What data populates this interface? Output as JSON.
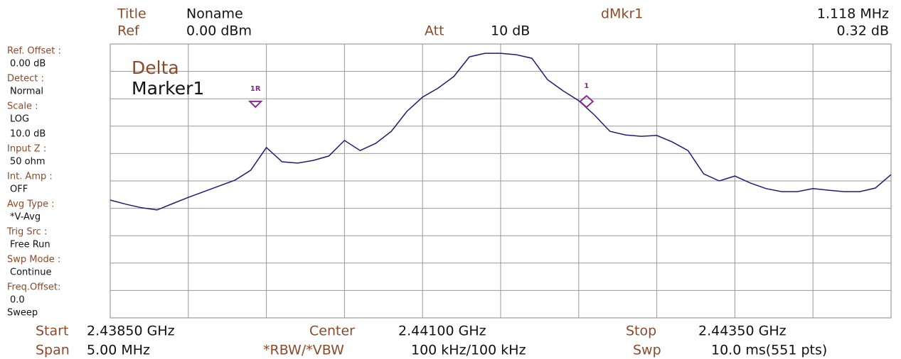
{
  "header": {
    "title_label": "Title",
    "title": "Noname",
    "ref_label": "Ref",
    "ref": "0.00 dBm",
    "att_label": "Att",
    "att": "10 dB",
    "dmkr_label": "dMkr1",
    "dmkr_freq": "1.118 MHz",
    "dmkr_level": "0.32 dB"
  },
  "side_panel": [
    {
      "label": "Ref. Offset :",
      "value": "0.00 dB"
    },
    {
      "label": "Detect :",
      "value": "Normal"
    },
    {
      "label": "Scale :",
      "value": "LOG"
    },
    {
      "label": "",
      "value": "10.0 dB"
    },
    {
      "label": "Input Z :",
      "value": "50 ohm"
    },
    {
      "label": "Int. Amp :",
      "value": "OFF"
    },
    {
      "label": "Avg Type :",
      "value": "*V-Avg"
    },
    {
      "label": "Trig Src :",
      "value": "Free Run"
    },
    {
      "label": "Swp Mode :",
      "value": "Continue"
    },
    {
      "label": "Freq.Offset:",
      "value": "0.0"
    }
  ],
  "sweep": "Sweep",
  "overlay": {
    "mode": "Delta",
    "marker": "Marker1"
  },
  "footer": {
    "start_label": "Start",
    "start": "2.43850 GHz",
    "center_label": "Center",
    "center": "2.44100 GHz",
    "stop_label": "Stop",
    "stop": "2.44350 GHz",
    "span_label": "Span",
    "span": "5.00 MHz",
    "bw_label": "*RBW/*VBW",
    "bw": "100 kHz/100 kHz",
    "swp_label": "Swp",
    "swp": "10.0 ms(551 pts)"
  },
  "chart_data": {
    "type": "line",
    "color": "#1c1c78",
    "xlim": [
      2.4385,
      2.4435
    ],
    "ylim": [
      -100,
      0
    ],
    "grid": true,
    "x": [
      2.4385,
      2.4386,
      2.4387,
      2.4388,
      2.4389,
      2.439,
      2.4391,
      2.4392,
      2.4393,
      2.4394,
      2.4395,
      2.4396,
      2.4397,
      2.4398,
      2.4399,
      2.44,
      2.4401,
      2.4402,
      2.4403,
      2.4404,
      2.4405,
      2.4406,
      2.4407,
      2.4408,
      2.4409,
      2.441,
      2.4411,
      2.4412,
      2.4413,
      2.4414,
      2.4415,
      2.4416,
      2.4417,
      2.4418,
      2.4419,
      2.442,
      2.4421,
      2.4422,
      2.4423,
      2.4424,
      2.4425,
      2.4426,
      2.4427,
      2.4428,
      2.4429,
      2.443,
      2.4431,
      2.4432,
      2.4433,
      2.4434,
      2.4435
    ],
    "values": [
      -57.0,
      -58.5,
      -59.8,
      -60.6,
      -58.3,
      -56.0,
      -53.9,
      -51.8,
      -49.7,
      -46.1,
      -37.8,
      -43.0,
      -43.5,
      -42.5,
      -40.9,
      -35.2,
      -38.9,
      -36.3,
      -31.9,
      -24.6,
      -19.4,
      -16.1,
      -11.9,
      -4.7,
      -3.4,
      -3.4,
      -3.9,
      -5.2,
      -13.0,
      -17.1,
      -20.7,
      -25.9,
      -31.9,
      -33.2,
      -33.7,
      -33.4,
      -35.8,
      -38.9,
      -47.4,
      -50.0,
      -48.2,
      -50.8,
      -52.8,
      -53.9,
      -53.9,
      -52.8,
      -53.4,
      -53.9,
      -53.9,
      -52.6,
      -47.7
    ],
    "markers": [
      {
        "label": "1R",
        "x": 2.43943,
        "y": -22.0,
        "color": "#8b2a8b"
      },
      {
        "label": "1",
        "x": 2.44155,
        "y": -21.0,
        "color": "#8b2a8b"
      }
    ]
  }
}
